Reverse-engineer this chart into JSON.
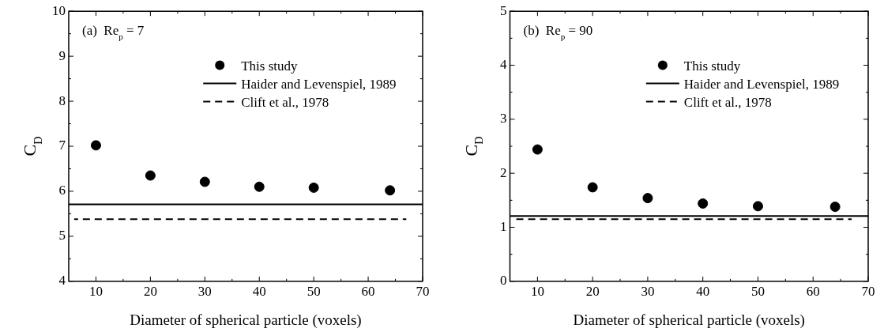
{
  "chart_data": [
    {
      "type": "scatter",
      "xlabel": "Diameter of spherical particle (voxels)",
      "ylabel": "C$_{D}$",
      "annotations": [
        "(a)  Re$_{p}$ = 7"
      ],
      "x": [
        10,
        20,
        30,
        40,
        50,
        64
      ],
      "series": [
        {
          "name": "This study",
          "color": "#000000",
          "marker": "circle",
          "values": [
            7.02,
            6.35,
            6.21,
            6.1,
            6.08,
            6.02
          ]
        },
        {
          "name": "Haider and Levenspiel, 1989",
          "type": "line",
          "color": "#000000",
          "line_style": "solid",
          "x": [
            5,
            70
          ],
          "values": [
            5.71,
            5.71
          ]
        },
        {
          "name": "Clift et al., 1978",
          "type": "line",
          "color": "#000000",
          "line_style": "dashed",
          "x": [
            6,
            67
          ],
          "values": [
            5.38,
            5.38
          ]
        }
      ],
      "xlim": [
        5,
        70
      ],
      "xticks": [
        10,
        {
          "value": 15,
          "label": null
        },
        20,
        {
          "value": 25,
          "label": null
        },
        30,
        {
          "value": 35,
          "label": null
        },
        40,
        {
          "value": 45,
          "label": null
        },
        50,
        {
          "value": 55,
          "label": null
        },
        60,
        {
          "value": 65,
          "label": null
        },
        70
      ],
      "ylim": [
        4,
        10
      ],
      "yticks": [
        4,
        {
          "value": 4.5,
          "label": null
        },
        5,
        {
          "value": 5.5,
          "label": null
        },
        6,
        {
          "value": 6.5,
          "label": null
        },
        7,
        {
          "value": 7.5,
          "label": null
        },
        8,
        {
          "value": 8.5,
          "label": null
        },
        9,
        {
          "value": 9.5,
          "label": null
        },
        10
      ],
      "grid": false,
      "legend": "top right"
    },
    {
      "type": "scatter",
      "xlabel": "Diameter of spherical particle (voxels)",
      "ylabel": "C$_{D}$",
      "annotations": [
        "(b)  Re$_{p}$ = 90"
      ],
      "x": [
        10,
        20,
        30,
        40,
        50,
        64
      ],
      "series": [
        {
          "name": "This study",
          "color": "#000000",
          "marker": "circle",
          "values": [
            2.44,
            1.74,
            1.54,
            1.44,
            1.39,
            1.38
          ]
        },
        {
          "name": "Haider and Levenspiel, 1989",
          "type": "line",
          "color": "#000000",
          "line_style": "solid",
          "x": [
            5,
            70
          ],
          "values": [
            1.21,
            1.21
          ]
        },
        {
          "name": "Clift et al., 1978",
          "type": "line",
          "color": "#000000",
          "line_style": "dashed",
          "x": [
            6,
            67
          ],
          "values": [
            1.15,
            1.15
          ]
        }
      ],
      "xlim": [
        5,
        70
      ],
      "xticks": [
        10,
        {
          "value": 15,
          "label": null
        },
        20,
        {
          "value": 25,
          "label": null
        },
        30,
        {
          "value": 35,
          "label": null
        },
        40,
        {
          "value": 45,
          "label": null
        },
        50,
        {
          "value": 55,
          "label": null
        },
        60,
        {
          "value": 65,
          "label": null
        },
        70
      ],
      "ylim": [
        0,
        5
      ],
      "yticks": [
        0,
        {
          "value": 0.5,
          "label": null
        },
        1,
        {
          "value": 1.5,
          "label": null
        },
        2,
        {
          "value": 2.5,
          "label": null
        },
        3,
        {
          "value": 3.5,
          "label": null
        },
        4,
        {
          "value": 4.5,
          "label": null
        },
        5
      ],
      "grid": false,
      "legend": "top right"
    }
  ]
}
